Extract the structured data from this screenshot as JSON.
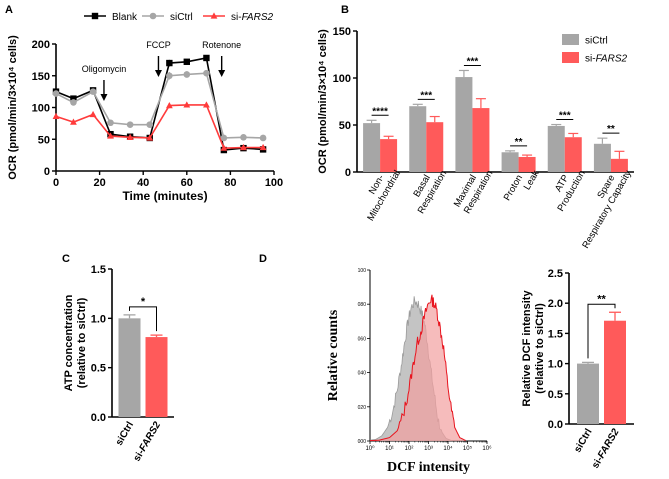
{
  "panels": {
    "a": "A",
    "b": "B",
    "c": "C",
    "d": "D"
  },
  "colors": {
    "blank": "#000000",
    "sictrl": "#a6a6a6",
    "sifars2": "#ff5a5a",
    "fars_line": "#ff3b3b",
    "hist_gray": "#b0b0b0",
    "hist_red_fill": "#f2a0a0",
    "hist_red_line": "#e8141e"
  },
  "chart_data": [
    {
      "id": "A",
      "type": "line",
      "xlabel": "Time (minutes)",
      "ylabel": "OCR (pmol/min/3×10⁴ cells)",
      "xlim": [
        0,
        100
      ],
      "ylim": [
        0,
        200
      ],
      "xticks": [
        0,
        20,
        40,
        60,
        80,
        100
      ],
      "yticks": [
        0,
        50,
        100,
        150,
        200
      ],
      "x": [
        0,
        8,
        17,
        25,
        34,
        43,
        52,
        60,
        69,
        77,
        86,
        95
      ],
      "series": [
        {
          "name": "Blank",
          "color": "#000000",
          "marker": "square",
          "values": [
            125,
            114,
            127,
            58,
            54,
            52,
            170,
            172,
            178,
            33,
            36,
            34
          ],
          "errors": [
            3,
            3,
            3,
            3,
            2,
            2,
            5,
            4,
            4,
            2,
            2,
            2
          ]
        },
        {
          "name": "siCtrl",
          "color": "#a6a6a6",
          "marker": "circle",
          "values": [
            122,
            108,
            125,
            76,
            73,
            73,
            150,
            152,
            154,
            52,
            53,
            52
          ],
          "errors": [
            3,
            3,
            3,
            2,
            2,
            2,
            6,
            5,
            5,
            2,
            2,
            2
          ]
        },
        {
          "name": "si-FARS2",
          "color": "#ff3b3b",
          "marker": "triangle",
          "values": [
            86,
            77,
            89,
            55,
            53,
            52,
            103,
            104,
            104,
            36,
            37,
            37
          ],
          "errors": [
            3,
            3,
            3,
            2,
            2,
            2,
            4,
            4,
            4,
            2,
            2,
            2
          ]
        }
      ],
      "annotations": [
        "Oligomycin",
        "FCCP",
        "Rotenone"
      ],
      "legend": "top"
    },
    {
      "id": "B",
      "type": "bar",
      "ylabel": "OCR (pmol/min/3×10⁴ cells)",
      "ylim": [
        0,
        150
      ],
      "yticks": [
        0,
        50,
        100,
        150
      ],
      "categories": [
        "Non-Mitochondrial",
        "Basal Respiration",
        "Maximal Respiration",
        "Proton Leak",
        "ATP Production",
        "Spare Respiratory Capacity"
      ],
      "category_lines": [
        [
          "Non-",
          "Mitochondrial"
        ],
        [
          "Basal",
          "Respiration"
        ],
        [
          "Maximal",
          "Respiration"
        ],
        [
          "Proton",
          "Leak"
        ],
        [
          "ATP",
          "Production"
        ],
        [
          "Spare",
          "Respiratory Capacity"
        ]
      ],
      "series": [
        {
          "name": "siCtrl",
          "color": "#a6a6a6",
          "values": [
            52,
            70,
            101,
            21,
            49,
            30
          ],
          "errors": [
            3,
            2,
            7,
            1.5,
            1.5,
            6
          ]
        },
        {
          "name": "si-FARS2",
          "color": "#ff5a5a",
          "values": [
            35,
            53,
            68,
            16,
            37,
            14
          ],
          "errors": [
            3,
            6,
            10,
            2,
            4,
            8
          ]
        }
      ],
      "significance": [
        "****",
        "***",
        "***",
        "**",
        "***",
        "**"
      ],
      "legend": "top-right"
    },
    {
      "id": "C",
      "type": "bar",
      "ylabel": [
        "ATP concentration",
        "(relative to siCtrl)"
      ],
      "ylim": [
        0,
        1.5
      ],
      "yticks": [
        "0.0",
        "0.5",
        "1.0",
        "1.5"
      ],
      "categories": [
        "siCtrl",
        "si-FARS2"
      ],
      "values": [
        1.0,
        0.81
      ],
      "errors": [
        0.035,
        0.02
      ],
      "colors": [
        "#a6a6a6",
        "#ff5a5a"
      ],
      "significance": "*"
    },
    {
      "id": "D-histogram",
      "type": "area",
      "xlabel": "DCF intensity",
      "ylabel": "Relative counts",
      "xscale": "log",
      "xlim": [
        1,
        1000000
      ],
      "xticks": [
        "10⁰",
        "10¹",
        "10²",
        "10³",
        "10⁴",
        "10⁵",
        "10⁶"
      ],
      "ylim": [
        0,
        100
      ],
      "yticks": [
        "000",
        "020",
        "040",
        "060",
        "080",
        "100"
      ],
      "series": [
        {
          "name": "siCtrl",
          "x": [
            1,
            2,
            4,
            8,
            15,
            25,
            40,
            60,
            90,
            130,
            200,
            300,
            450,
            650,
            900,
            1300,
            2000,
            3000,
            5000,
            8000,
            15000
          ],
          "values": [
            0.5,
            1,
            3,
            8,
            18,
            30,
            44,
            58,
            70,
            78,
            82,
            80,
            75,
            68,
            57,
            42,
            27,
            13,
            5,
            1.5,
            0.3
          ]
        },
        {
          "name": "si-FARS2",
          "x": [
            1,
            3,
            10,
            25,
            50,
            90,
            150,
            250,
            400,
            600,
            900,
            1300,
            1900,
            2700,
            4000,
            6000,
            9000,
            14000,
            22000,
            40000,
            80000
          ],
          "values": [
            0.2,
            0.5,
            2,
            6,
            15,
            28,
            42,
            56,
            64,
            72,
            79,
            83,
            81,
            76,
            66,
            54,
            36,
            20,
            8,
            2,
            0.3
          ]
        }
      ]
    },
    {
      "id": "D-bar",
      "type": "bar",
      "ylabel": [
        "Relative DCF intensity",
        "(relative to siCtrl)"
      ],
      "ylim": [
        0,
        2.5
      ],
      "yticks": [
        "0.0",
        "0.5",
        "1.0",
        "1.5",
        "2.0",
        "2.5"
      ],
      "categories": [
        "siCtrl",
        "si-FARS2"
      ],
      "values": [
        1.0,
        1.71
      ],
      "errors": [
        0.02,
        0.14
      ],
      "colors": [
        "#a6a6a6",
        "#ff5a5a"
      ],
      "significance": "**"
    }
  ]
}
